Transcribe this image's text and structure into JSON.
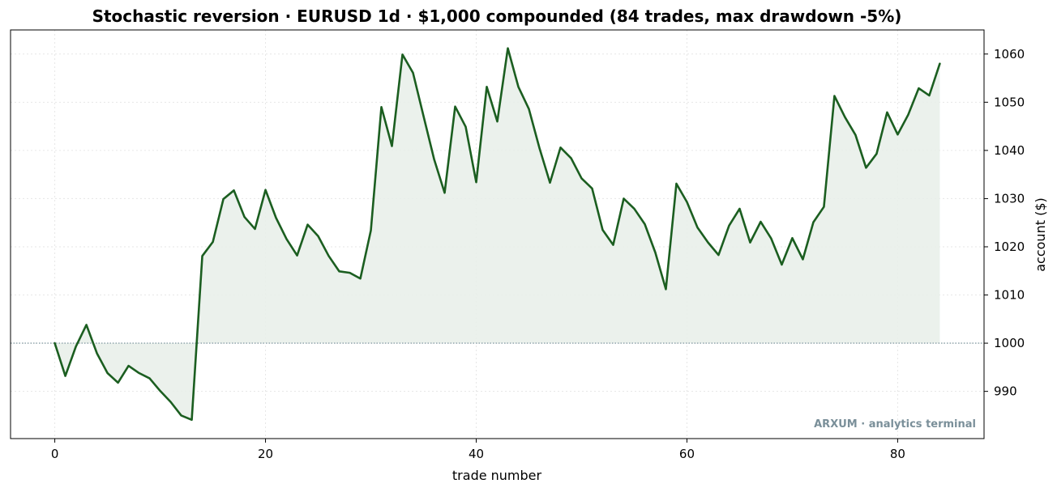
{
  "chart_data": {
    "type": "area",
    "title": "Stochastic reversion · EURUSD 1d · $1,000 compounded (84 trades, max drawdown -5%)",
    "xlabel": "trade number",
    "ylabel": "account ($)",
    "xlim": [
      -4.2,
      88.2
    ],
    "ylim": [
      980.2,
      1065.0
    ],
    "xticks": [
      0,
      20,
      40,
      60,
      80
    ],
    "yticks": [
      990,
      1000,
      1010,
      1020,
      1030,
      1040,
      1050,
      1060
    ],
    "y_axis_side": "right",
    "grid": true,
    "baseline": 1000,
    "line_color": "#1b5e20",
    "fill_color": "#e8efe9",
    "baseline_color": "#8aa0a8",
    "x": [
      0,
      1,
      2,
      3,
      4,
      5,
      6,
      7,
      8,
      9,
      10,
      11,
      12,
      13,
      14,
      15,
      16,
      17,
      18,
      19,
      20,
      21,
      22,
      23,
      24,
      25,
      26,
      27,
      28,
      29,
      30,
      31,
      32,
      33,
      34,
      35,
      36,
      37,
      38,
      39,
      40,
      41,
      42,
      43,
      44,
      45,
      46,
      47,
      48,
      49,
      50,
      51,
      52,
      53,
      54,
      55,
      56,
      57,
      58,
      59,
      60,
      61,
      62,
      63,
      64,
      65,
      66,
      67,
      68,
      69,
      70,
      71,
      72,
      73,
      74,
      75,
      76,
      77,
      78,
      79,
      80,
      81,
      82,
      83,
      84
    ],
    "values": [
      1000.0,
      993.2,
      999.3,
      1003.8,
      997.9,
      993.8,
      991.8,
      995.3,
      993.8,
      992.7,
      990.1,
      987.8,
      985.0,
      984.1,
      1018.1,
      1021.0,
      1029.9,
      1031.7,
      1026.2,
      1023.7,
      1031.8,
      1026.0,
      1021.6,
      1018.2,
      1024.6,
      1022.2,
      1018.1,
      1014.9,
      1014.6,
      1013.4,
      1023.4,
      1049.0,
      1040.9,
      1059.9,
      1056.1,
      1047.1,
      1038.2,
      1031.2,
      1049.1,
      1044.9,
      1033.4,
      1053.2,
      1046.0,
      1061.2,
      1053.2,
      1048.6,
      1040.5,
      1033.3,
      1040.6,
      1038.4,
      1034.2,
      1032.1,
      1023.5,
      1020.4,
      1030.0,
      1027.9,
      1024.7,
      1018.8,
      1011.2,
      1033.1,
      1029.3,
      1024.0,
      1020.9,
      1018.3,
      1024.4,
      1027.9,
      1020.9,
      1025.2,
      1021.7,
      1016.3,
      1021.8,
      1017.4,
      1025.1,
      1028.3,
      1051.3,
      1046.9,
      1043.2,
      1036.4,
      1039.3,
      1047.9,
      1043.3,
      1047.4,
      1052.9,
      1051.4,
      1058.0
    ]
  },
  "watermark": {
    "text": "ARXUM · analytics terminal",
    "color": "#7a8f99"
  }
}
